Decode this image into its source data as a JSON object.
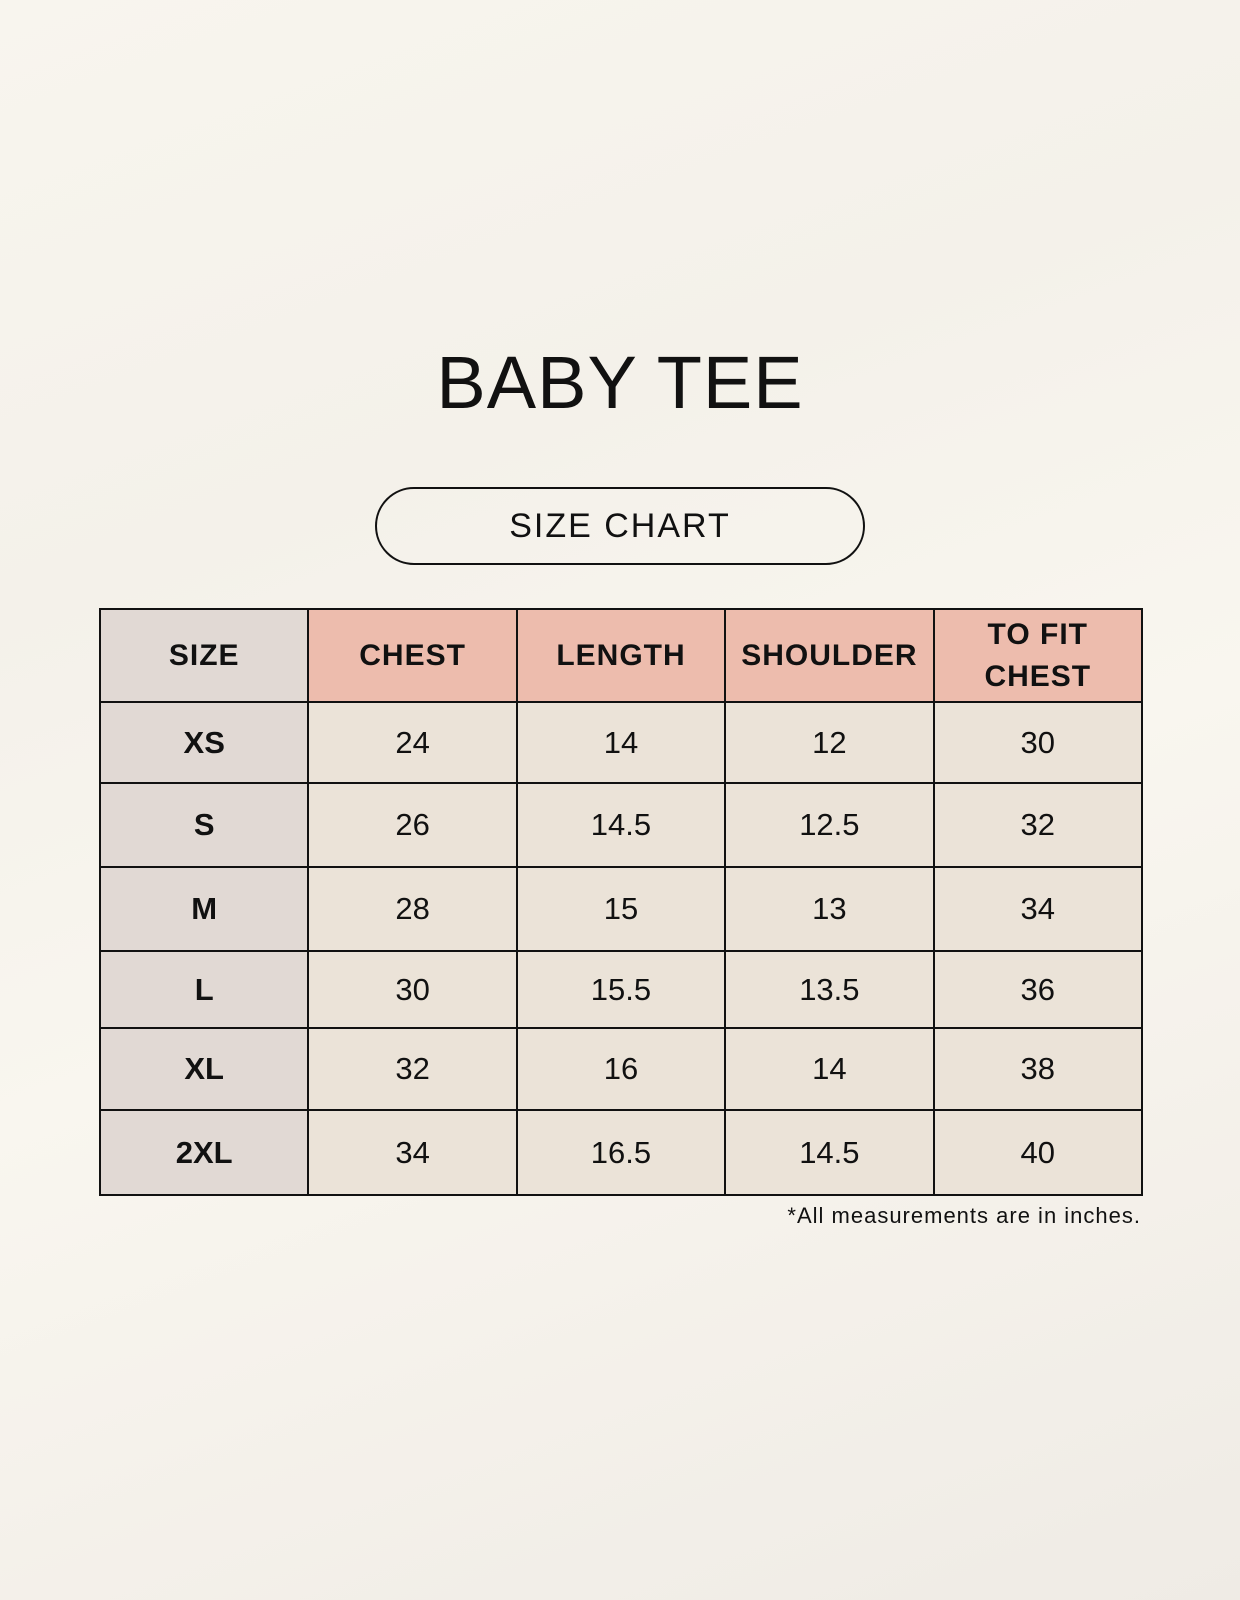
{
  "title": "BABY TEE",
  "subtitle": "SIZE CHART",
  "colors": {
    "header_accent": "#edbcad",
    "size_column": "#e1d9d4",
    "cell": "#ebe3d8"
  },
  "table": {
    "headers": [
      "SIZE",
      "CHEST",
      "LENGTH",
      "SHOULDER",
      "TO FIT CHEST"
    ],
    "rows": [
      [
        "XS",
        "24",
        "14",
        "12",
        "30"
      ],
      [
        "S",
        "26",
        "14.5",
        "12.5",
        "32"
      ],
      [
        "M",
        "28",
        "15",
        "13",
        "34"
      ],
      [
        "L",
        "30",
        "15.5",
        "13.5",
        "36"
      ],
      [
        "XL",
        "32",
        "16",
        "14",
        "38"
      ],
      [
        "2XL",
        "34",
        "16.5",
        "14.5",
        "40"
      ]
    ]
  },
  "footnote": "*All measurements are in inches."
}
